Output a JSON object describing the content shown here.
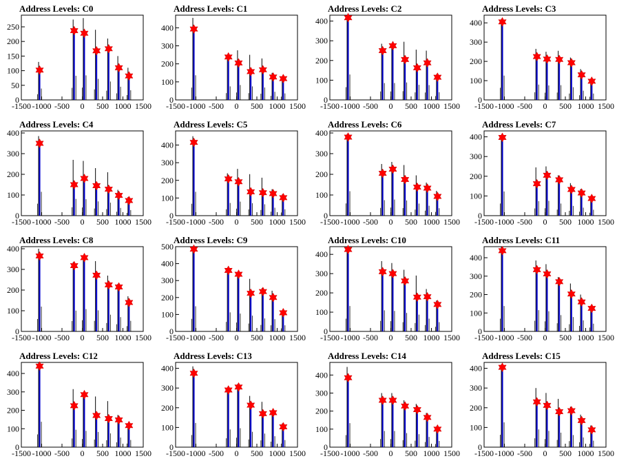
{
  "chart_data": [
    {
      "type": "bar",
      "title": "Address Levels: C0",
      "xlim": [
        -1500,
        1500
      ],
      "ylim": [
        0,
        290
      ],
      "yticks": [
        0,
        50,
        100,
        150,
        200,
        250
      ],
      "xticks": [
        -1500,
        -1000,
        -500,
        0,
        500,
        1000,
        1500
      ],
      "peaks": [
        {
          "x": -1050,
          "height": 130,
          "marker": 102
        },
        {
          "x": -200,
          "height": 275,
          "marker": 237
        },
        {
          "x": 50,
          "height": 280,
          "marker": 228
        },
        {
          "x": 350,
          "height": 240,
          "marker": 168
        },
        {
          "x": 650,
          "height": 210,
          "marker": 175
        },
        {
          "x": 900,
          "height": 150,
          "marker": 110
        },
        {
          "x": 1150,
          "height": 110,
          "marker": 82
        }
      ]
    },
    {
      "type": "bar",
      "title": "Address Levels: C1",
      "xlim": [
        -1500,
        1500
      ],
      "ylim": [
        0,
        470
      ],
      "yticks": [
        0,
        100,
        200,
        300,
        400
      ],
      "xticks": [
        -1500,
        -1000,
        -500,
        0,
        500,
        1000,
        1500
      ],
      "peaks": [
        {
          "x": -1050,
          "height": 455,
          "marker": 393
        },
        {
          "x": -200,
          "height": 250,
          "marker": 238
        },
        {
          "x": 50,
          "height": 275,
          "marker": 205
        },
        {
          "x": 350,
          "height": 250,
          "marker": 157
        },
        {
          "x": 650,
          "height": 230,
          "marker": 167
        },
        {
          "x": 900,
          "height": 150,
          "marker": 127
        },
        {
          "x": 1150,
          "height": 120,
          "marker": 118
        }
      ]
    },
    {
      "type": "bar",
      "title": "Address Levels: C2",
      "xlim": [
        -1500,
        1500
      ],
      "ylim": [
        0,
        430
      ],
      "yticks": [
        0,
        100,
        200,
        300,
        400
      ],
      "xticks": [
        -1500,
        -1000,
        -500,
        0,
        500,
        1000,
        1500
      ],
      "peaks": [
        {
          "x": -1050,
          "height": 430,
          "marker": 417
        },
        {
          "x": -200,
          "height": 285,
          "marker": 250
        },
        {
          "x": 50,
          "height": 285,
          "marker": 275
        },
        {
          "x": 350,
          "height": 295,
          "marker": 205
        },
        {
          "x": 650,
          "height": 255,
          "marker": 163
        },
        {
          "x": 900,
          "height": 250,
          "marker": 188
        },
        {
          "x": 1150,
          "height": 130,
          "marker": 115
        }
      ]
    },
    {
      "type": "bar",
      "title": "Address Levels: C3",
      "xlim": [
        -1500,
        1500
      ],
      "ylim": [
        0,
        440
      ],
      "yticks": [
        0,
        100,
        200,
        300,
        400
      ],
      "xticks": [
        -1500,
        -1000,
        -500,
        0,
        500,
        1000,
        1500
      ],
      "peaks": [
        {
          "x": -1050,
          "height": 420,
          "marker": 405
        },
        {
          "x": -200,
          "height": 265,
          "marker": 225
        },
        {
          "x": 50,
          "height": 250,
          "marker": 212
        },
        {
          "x": 350,
          "height": 255,
          "marker": 210
        },
        {
          "x": 650,
          "height": 220,
          "marker": 193
        },
        {
          "x": 900,
          "height": 160,
          "marker": 130
        },
        {
          "x": 1150,
          "height": 110,
          "marker": 97
        }
      ]
    },
    {
      "type": "bar",
      "title": "Address Levels: C4",
      "xlim": [
        -1500,
        1500
      ],
      "ylim": [
        0,
        410
      ],
      "yticks": [
        0,
        100,
        200,
        300,
        400
      ],
      "xticks": [
        -1500,
        -1000,
        -500,
        0,
        500,
        1000,
        1500
      ],
      "peaks": [
        {
          "x": -1050,
          "height": 385,
          "marker": 350
        },
        {
          "x": -200,
          "height": 270,
          "marker": 150
        },
        {
          "x": 50,
          "height": 265,
          "marker": 180
        },
        {
          "x": 350,
          "height": 230,
          "marker": 145
        },
        {
          "x": 650,
          "height": 210,
          "marker": 128
        },
        {
          "x": 900,
          "height": 125,
          "marker": 98
        },
        {
          "x": 1150,
          "height": 90,
          "marker": 73
        }
      ]
    },
    {
      "type": "bar",
      "title": "Address Levels: C5",
      "xlim": [
        -1500,
        1500
      ],
      "ylim": [
        0,
        480
      ],
      "yticks": [
        0,
        100,
        200,
        300,
        400
      ],
      "xticks": [
        -1500,
        -1000,
        -500,
        0,
        500,
        1000,
        1500
      ],
      "peaks": [
        {
          "x": -1050,
          "height": 450,
          "marker": 415
        },
        {
          "x": -200,
          "height": 240,
          "marker": 208
        },
        {
          "x": 50,
          "height": 265,
          "marker": 192
        },
        {
          "x": 350,
          "height": 235,
          "marker": 135
        },
        {
          "x": 650,
          "height": 215,
          "marker": 130
        },
        {
          "x": 900,
          "height": 150,
          "marker": 125
        },
        {
          "x": 1150,
          "height": 120,
          "marker": 102
        }
      ]
    },
    {
      "type": "bar",
      "title": "Address Levels: C6",
      "xlim": [
        -1500,
        1500
      ],
      "ylim": [
        0,
        410
      ],
      "yticks": [
        0,
        100,
        200,
        300,
        400
      ],
      "xticks": [
        -1500,
        -1000,
        -500,
        0,
        500,
        1000,
        1500
      ],
      "peaks": [
        {
          "x": -1050,
          "height": 395,
          "marker": 380
        },
        {
          "x": -200,
          "height": 250,
          "marker": 205
        },
        {
          "x": 50,
          "height": 260,
          "marker": 225
        },
        {
          "x": 350,
          "height": 245,
          "marker": 175
        },
        {
          "x": 650,
          "height": 195,
          "marker": 138
        },
        {
          "x": 900,
          "height": 160,
          "marker": 133
        },
        {
          "x": 1150,
          "height": 120,
          "marker": 93
        }
      ]
    },
    {
      "type": "bar",
      "title": "Address Levels: C7",
      "xlim": [
        -1500,
        1500
      ],
      "ylim": [
        0,
        430
      ],
      "yticks": [
        0,
        100,
        200,
        300,
        400
      ],
      "xticks": [
        -1500,
        -1000,
        -500,
        0,
        500,
        1000,
        1500
      ],
      "peaks": [
        {
          "x": -1050,
          "height": 410,
          "marker": 397
        },
        {
          "x": -200,
          "height": 245,
          "marker": 162
        },
        {
          "x": 50,
          "height": 250,
          "marker": 205
        },
        {
          "x": 350,
          "height": 205,
          "marker": 182
        },
        {
          "x": 650,
          "height": 165,
          "marker": 133
        },
        {
          "x": 900,
          "height": 135,
          "marker": 115
        },
        {
          "x": 1150,
          "height": 100,
          "marker": 87
        }
      ]
    },
    {
      "type": "bar",
      "title": "Address Levels: C8",
      "xlim": [
        -1500,
        1500
      ],
      "ylim": [
        0,
        410
      ],
      "yticks": [
        0,
        100,
        200,
        300,
        400
      ],
      "xticks": [
        -1500,
        -1000,
        -500,
        0,
        500,
        1000,
        1500
      ],
      "peaks": [
        {
          "x": -1050,
          "height": 400,
          "marker": 365
        },
        {
          "x": -200,
          "height": 335,
          "marker": 318
        },
        {
          "x": 50,
          "height": 360,
          "marker": 357
        },
        {
          "x": 350,
          "height": 340,
          "marker": 272
        },
        {
          "x": 650,
          "height": 270,
          "marker": 225
        },
        {
          "x": 900,
          "height": 230,
          "marker": 215
        },
        {
          "x": 1150,
          "height": 170,
          "marker": 140
        }
      ]
    },
    {
      "type": "bar",
      "title": "Address Levels: C9",
      "xlim": [
        -1500,
        1500
      ],
      "ylim": [
        0,
        500
      ],
      "yticks": [
        0,
        100,
        200,
        300,
        400,
        500
      ],
      "xticks": [
        -1500,
        -1000,
        -500,
        0,
        500,
        1000,
        1500
      ],
      "peaks": [
        {
          "x": -1050,
          "height": 495,
          "marker": 485
        },
        {
          "x": -200,
          "height": 375,
          "marker": 360
        },
        {
          "x": 50,
          "height": 350,
          "marker": 337
        },
        {
          "x": 350,
          "height": 310,
          "marker": 225
        },
        {
          "x": 650,
          "height": 255,
          "marker": 235
        },
        {
          "x": 900,
          "height": 240,
          "marker": 200
        },
        {
          "x": 1150,
          "height": 120,
          "marker": 110
        }
      ]
    },
    {
      "type": "bar",
      "title": "Address Levels: C10",
      "xlim": [
        -1500,
        1500
      ],
      "ylim": [
        0,
        440
      ],
      "yticks": [
        0,
        100,
        200,
        300,
        400
      ],
      "xticks": [
        -1500,
        -1000,
        -500,
        0,
        500,
        1000,
        1500
      ],
      "peaks": [
        {
          "x": -1050,
          "height": 440,
          "marker": 425
        },
        {
          "x": -200,
          "height": 365,
          "marker": 310
        },
        {
          "x": 50,
          "height": 355,
          "marker": 300
        },
        {
          "x": 350,
          "height": 320,
          "marker": 262
        },
        {
          "x": 650,
          "height": 290,
          "marker": 178
        },
        {
          "x": 900,
          "height": 220,
          "marker": 180
        },
        {
          "x": 1150,
          "height": 160,
          "marker": 140
        }
      ]
    },
    {
      "type": "bar",
      "title": "Address Levels: C11",
      "xlim": [
        -1500,
        1500
      ],
      "ylim": [
        0,
        460
      ],
      "yticks": [
        0,
        100,
        200,
        300,
        400
      ],
      "xticks": [
        -1500,
        -1000,
        -500,
        0,
        500,
        1000,
        1500
      ],
      "peaks": [
        {
          "x": -1050,
          "height": 460,
          "marker": 438
        },
        {
          "x": -200,
          "height": 385,
          "marker": 335
        },
        {
          "x": 50,
          "height": 365,
          "marker": 312
        },
        {
          "x": 350,
          "height": 295,
          "marker": 270
        },
        {
          "x": 650,
          "height": 260,
          "marker": 203
        },
        {
          "x": 900,
          "height": 200,
          "marker": 160
        },
        {
          "x": 1150,
          "height": 140,
          "marker": 125
        }
      ]
    },
    {
      "type": "bar",
      "title": "Address Levels: C12",
      "xlim": [
        -1500,
        1500
      ],
      "ylim": [
        0,
        460
      ],
      "yticks": [
        0,
        100,
        200,
        300,
        400
      ],
      "xticks": [
        -1500,
        -1000,
        -500,
        0,
        500,
        1000,
        1500
      ],
      "peaks": [
        {
          "x": -1050,
          "height": 460,
          "marker": 440
        },
        {
          "x": -200,
          "height": 315,
          "marker": 225
        },
        {
          "x": 50,
          "height": 295,
          "marker": 285
        },
        {
          "x": 350,
          "height": 275,
          "marker": 172
        },
        {
          "x": 650,
          "height": 250,
          "marker": 155
        },
        {
          "x": 900,
          "height": 175,
          "marker": 148
        },
        {
          "x": 1150,
          "height": 130,
          "marker": 117
        }
      ]
    },
    {
      "type": "bar",
      "title": "Address Levels: C13",
      "xlim": [
        -1500,
        1500
      ],
      "ylim": [
        0,
        430
      ],
      "yticks": [
        0,
        100,
        200,
        300,
        400
      ],
      "xticks": [
        -1500,
        -1000,
        -500,
        0,
        500,
        1000,
        1500
      ],
      "peaks": [
        {
          "x": -1050,
          "height": 410,
          "marker": 375
        },
        {
          "x": -200,
          "height": 300,
          "marker": 290
        },
        {
          "x": 50,
          "height": 320,
          "marker": 305
        },
        {
          "x": 350,
          "height": 260,
          "marker": 213
        },
        {
          "x": 650,
          "height": 230,
          "marker": 170
        },
        {
          "x": 900,
          "height": 185,
          "marker": 175
        },
        {
          "x": 1150,
          "height": 120,
          "marker": 103
        }
      ]
    },
    {
      "type": "bar",
      "title": "Address Levels: C14",
      "xlim": [
        -1500,
        1500
      ],
      "ylim": [
        0,
        470
      ],
      "yticks": [
        0,
        100,
        200,
        300,
        400
      ],
      "xticks": [
        -1500,
        -1000,
        -500,
        0,
        500,
        1000,
        1500
      ],
      "peaks": [
        {
          "x": -1050,
          "height": 445,
          "marker": 385
        },
        {
          "x": -200,
          "height": 300,
          "marker": 260
        },
        {
          "x": 50,
          "height": 300,
          "marker": 260
        },
        {
          "x": 350,
          "height": 260,
          "marker": 228
        },
        {
          "x": 650,
          "height": 240,
          "marker": 208
        },
        {
          "x": 900,
          "height": 190,
          "marker": 165
        },
        {
          "x": 1150,
          "height": 115,
          "marker": 100
        }
      ]
    },
    {
      "type": "bar",
      "title": "Address Levels: C15",
      "xlim": [
        -1500,
        1500
      ],
      "ylim": [
        0,
        430
      ],
      "yticks": [
        0,
        100,
        200,
        300,
        400
      ],
      "xticks": [
        -1500,
        -1000,
        -500,
        0,
        500,
        1000,
        1500
      ],
      "peaks": [
        {
          "x": -1050,
          "height": 420,
          "marker": 405
        },
        {
          "x": -200,
          "height": 300,
          "marker": 230
        },
        {
          "x": 50,
          "height": 275,
          "marker": 212
        },
        {
          "x": 350,
          "height": 245,
          "marker": 180
        },
        {
          "x": 650,
          "height": 205,
          "marker": 185
        },
        {
          "x": 900,
          "height": 165,
          "marker": 135
        },
        {
          "x": 1150,
          "height": 110,
          "marker": 88
        }
      ]
    }
  ]
}
